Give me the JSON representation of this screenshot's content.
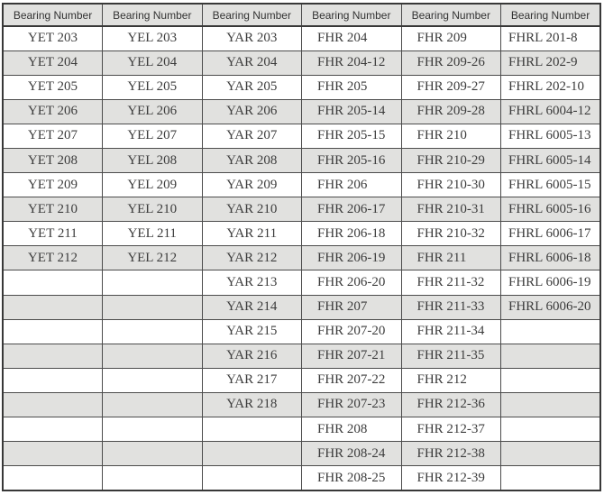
{
  "colors": {
    "alt_row_bg": "#e1e1df",
    "header_bg": "#e1e1df",
    "grid_border": "#4c4c4c",
    "outer_border": "#383838",
    "cell_text": "#3c3c3c",
    "header_text": "#333333"
  },
  "table": {
    "headers": [
      "Bearing Number",
      "Bearing Number",
      "Bearing Number",
      "Bearing Number",
      "Bearing Number",
      "Bearing Number"
    ],
    "rows": [
      [
        "YET 203",
        "YEL 203",
        "YAR 203",
        "FHR 204",
        "FHR 209",
        "FHRL 201-8"
      ],
      [
        "YET 204",
        "YEL 204",
        "YAR 204",
        "FHR 204-12",
        "FHR 209-26",
        "FHRL 202-9"
      ],
      [
        "YET 205",
        "YEL 205",
        "YAR 205",
        "FHR 205",
        "FHR 209-27",
        "FHRL 202-10"
      ],
      [
        "YET 206",
        "YEL 206",
        "YAR 206",
        "FHR 205-14",
        "FHR 209-28",
        "FHRL 6004-12"
      ],
      [
        "YET 207",
        "YEL 207",
        "YAR 207",
        "FHR 205-15",
        "FHR 210",
        "FHRL 6005-13"
      ],
      [
        "YET 208",
        "YEL 208",
        "YAR 208",
        "FHR 205-16",
        "FHR 210-29",
        "FHRL 6005-14"
      ],
      [
        "YET 209",
        "YEL 209",
        "YAR 209",
        "FHR 206",
        "FHR 210-30",
        "FHRL 6005-15"
      ],
      [
        "YET 210",
        "YEL 210",
        "YAR 210",
        "FHR 206-17",
        "FHR 210-31",
        "FHRL 6005-16"
      ],
      [
        "YET 211",
        "YEL 211",
        "YAR 211",
        "FHR 206-18",
        "FHR 210-32",
        "FHRL 6006-17"
      ],
      [
        "YET 212",
        "YEL 212",
        "YAR 212",
        "FHR 206-19",
        "FHR 211",
        "FHRL 6006-18"
      ],
      [
        "",
        "",
        "YAR 213",
        "FHR 206-20",
        "FHR 211-32",
        "FHRL 6006-19"
      ],
      [
        "",
        "",
        "YAR 214",
        "FHR 207",
        "FHR 211-33",
        "FHRL 6006-20"
      ],
      [
        "",
        "",
        "YAR 215",
        "FHR 207-20",
        "FHR 211-34",
        ""
      ],
      [
        "",
        "",
        "YAR 216",
        "FHR 207-21",
        "FHR 211-35",
        ""
      ],
      [
        "",
        "",
        "YAR 217",
        "FHR 207-22",
        "FHR 212",
        ""
      ],
      [
        "",
        "",
        "YAR 218",
        "FHR 207-23",
        "FHR 212-36",
        ""
      ],
      [
        "",
        "",
        "",
        "FHR 208",
        "FHR 212-37",
        ""
      ],
      [
        "",
        "",
        "",
        "FHR 208-24",
        "FHR 212-38",
        ""
      ],
      [
        "",
        "",
        "",
        "FHR 208-25",
        "FHR 212-39",
        ""
      ]
    ]
  }
}
